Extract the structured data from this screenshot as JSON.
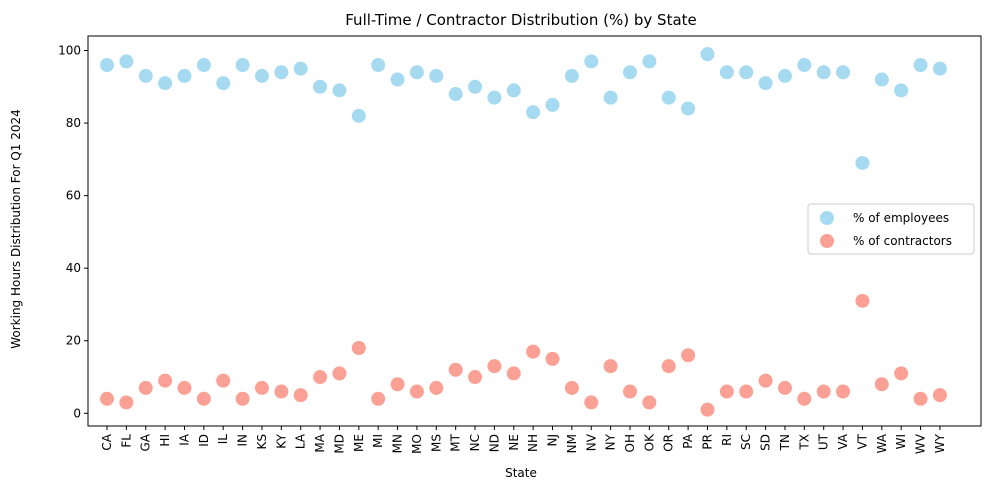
{
  "chart_data": {
    "type": "scatter",
    "title": "Full-Time / Contractor Distribution (%) by State",
    "xlabel": "State",
    "ylabel": "Working Hours Distribution For Q1 2024",
    "ylim": [
      -3.5,
      104
    ],
    "yticks": [
      0,
      20,
      40,
      60,
      80,
      100
    ],
    "grid": false,
    "legend_position": "center-right",
    "categories": [
      "CA",
      "FL",
      "GA",
      "HI",
      "IA",
      "ID",
      "IL",
      "IN",
      "KS",
      "KY",
      "LA",
      "MA",
      "MD",
      "ME",
      "MI",
      "MN",
      "MO",
      "MS",
      "MT",
      "NC",
      "ND",
      "NE",
      "NH",
      "NJ",
      "NM",
      "NV",
      "NY",
      "OH",
      "OK",
      "OR",
      "PA",
      "PR",
      "RI",
      "SC",
      "SD",
      "TN",
      "TX",
      "UT",
      "VA",
      "VT",
      "WA",
      "WI",
      "WV",
      "WY"
    ],
    "series": [
      {
        "name": "% of employees",
        "color": "#87CEEB",
        "values": [
          96,
          97,
          93,
          91,
          93,
          96,
          91,
          96,
          93,
          94,
          95,
          90,
          89,
          82,
          96,
          92,
          94,
          93,
          88,
          90,
          87,
          89,
          83,
          85,
          93,
          97,
          87,
          94,
          97,
          87,
          84,
          99,
          94,
          94,
          91,
          93,
          96,
          94,
          94,
          69,
          92,
          89,
          96,
          95
        ]
      },
      {
        "name": "% of contractors",
        "color": "#FA8072",
        "values": [
          4,
          3,
          7,
          9,
          7,
          4,
          9,
          4,
          7,
          6,
          5,
          10,
          11,
          18,
          4,
          8,
          6,
          7,
          12,
          10,
          13,
          11,
          17,
          15,
          7,
          3,
          13,
          6,
          3,
          13,
          16,
          1,
          6,
          6,
          9,
          7,
          4,
          6,
          6,
          31,
          8,
          11,
          4,
          5
        ]
      }
    ]
  }
}
